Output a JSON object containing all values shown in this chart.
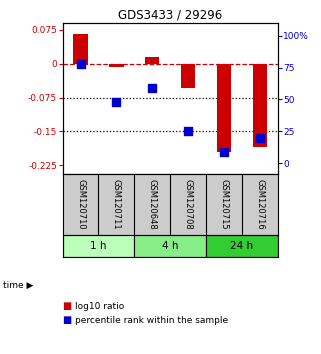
{
  "title": "GDS3433 / 29296",
  "samples": [
    "GSM120710",
    "GSM120711",
    "GSM120648",
    "GSM120708",
    "GSM120715",
    "GSM120716"
  ],
  "time_groups": [
    {
      "label": "1 h",
      "indices": [
        0,
        1
      ],
      "color": "#bbffbb"
    },
    {
      "label": "4 h",
      "indices": [
        2,
        3
      ],
      "color": "#88ee88"
    },
    {
      "label": "24 h",
      "indices": [
        4,
        5
      ],
      "color": "#33cc33"
    }
  ],
  "log10_ratio": [
    0.065,
    -0.007,
    0.015,
    -0.055,
    -0.195,
    -0.185
  ],
  "percentile_rank": [
    75,
    47,
    57,
    25,
    10,
    20
  ],
  "ylim_left": [
    -0.245,
    0.09
  ],
  "ylim_right": [
    -8.75,
    110
  ],
  "yticks_left": [
    0.075,
    0,
    -0.075,
    -0.15,
    -0.225
  ],
  "yticks_right": [
    100,
    75,
    50,
    25,
    0
  ],
  "bar_color": "#cc0000",
  "dot_color": "#0000cc",
  "dashed_line_color": "#cc0000",
  "dotted_line_color": "#000000",
  "right_axis_color": "#0000cc",
  "left_axis_color": "#cc0000",
  "background_color": "#ffffff",
  "plot_bg": "#ffffff",
  "sample_bg": "#cccccc",
  "bar_width": 0.4
}
